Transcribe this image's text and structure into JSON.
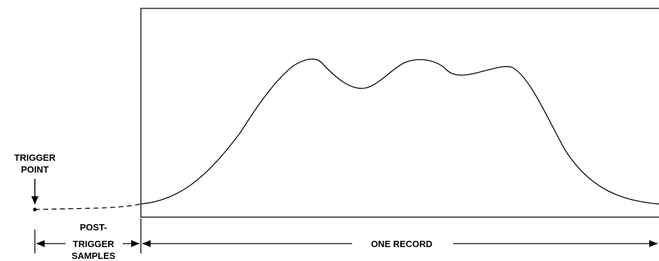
{
  "trigger_label": {
    "line1": "TRIGGER",
    "line2": "POINT"
  },
  "post_trigger_label": {
    "line1": "POST-",
    "line2": "TRIGGER",
    "line3": "SAMPLES"
  },
  "record_label": "ONE RECORD"
}
